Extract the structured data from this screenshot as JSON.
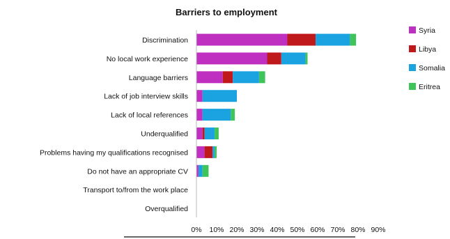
{
  "chart_data": {
    "type": "bar",
    "stacked": true,
    "orientation": "horizontal",
    "title": "Barriers to employment",
    "xlabel": "",
    "ylabel": "",
    "xlim": [
      0,
      90
    ],
    "x_ticks": [
      "0%",
      "10%",
      "20%",
      "30%",
      "40%",
      "50%",
      "60%",
      "70%",
      "80%",
      "90%"
    ],
    "legend_position": "right",
    "grid": false,
    "categories": [
      "Discrimination",
      "No local work experience",
      "Language barriers",
      "Lack of job interview skills",
      "Lack of local references",
      "Underqualified",
      "Problems having my qualifications recognised",
      "Do not have an appropriate CV",
      "Transport to/from the work place",
      "Overqualified"
    ],
    "series": [
      {
        "name": "Syria",
        "color": "#c030c0",
        "values": [
          45,
          35,
          13,
          3,
          3,
          3,
          4,
          1,
          0,
          0
        ]
      },
      {
        "name": "Libya",
        "color": "#c0191c",
        "values": [
          14,
          7,
          5,
          0,
          0,
          1,
          4,
          0,
          0,
          0
        ]
      },
      {
        "name": "Somalia",
        "color": "#1aa3e0",
        "values": [
          17,
          12,
          13,
          17,
          14,
          5,
          1,
          2,
          0,
          0
        ]
      },
      {
        "name": "Eritrea",
        "color": "#3ec45a",
        "values": [
          3,
          1,
          3,
          0,
          2,
          2,
          1,
          3,
          0,
          0
        ]
      }
    ]
  }
}
